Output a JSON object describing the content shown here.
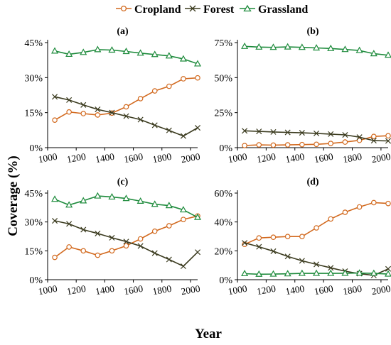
{
  "figure": {
    "ylabel": "Coverage (%)",
    "xlabel": "Year",
    "legend_position": "top-center"
  },
  "legend": [
    {
      "name": "Cropland",
      "color": "#D2691E",
      "marker": "circle"
    },
    {
      "name": "Forest",
      "color": "#3B3B1F",
      "marker": "x"
    },
    {
      "name": "Grassland",
      "color": "#1E8B3C",
      "marker": "triangle"
    }
  ],
  "chart_data": [
    {
      "type": "line",
      "title": "(a)",
      "xlabel": "",
      "ylabel": "",
      "xlim": [
        1000,
        2050
      ],
      "ylim": [
        0,
        45
      ],
      "xticks": [
        1000,
        1200,
        1400,
        1600,
        1800,
        2000
      ],
      "yticks": [
        0,
        15,
        30,
        45
      ],
      "ytick_labels": [
        "0%",
        "15%",
        "30%",
        "45%"
      ],
      "grid": false,
      "x": [
        1050,
        1150,
        1250,
        1350,
        1450,
        1550,
        1650,
        1750,
        1850,
        1950,
        2050
      ],
      "series": [
        {
          "name": "Cropland",
          "values": [
            11.8,
            15.3,
            14.6,
            14.0,
            14.8,
            17.5,
            21.0,
            24.3,
            26.3,
            29.5,
            29.9
          ]
        },
        {
          "name": "Forest",
          "values": [
            21.8,
            20.4,
            18.3,
            16.4,
            15.0,
            13.5,
            12.0,
            9.6,
            7.4,
            5.0,
            8.5
          ]
        },
        {
          "name": "Grassland",
          "values": [
            41.4,
            40.0,
            40.8,
            42.0,
            41.8,
            41.2,
            40.5,
            39.9,
            39.3,
            38.0,
            35.9
          ]
        }
      ]
    },
    {
      "type": "line",
      "title": "(b)",
      "xlabel": "",
      "ylabel": "",
      "xlim": [
        1000,
        2050
      ],
      "ylim": [
        0,
        75
      ],
      "xticks": [
        1000,
        1200,
        1400,
        1600,
        1800,
        2000
      ],
      "yticks": [
        0,
        25,
        50,
        75
      ],
      "ytick_labels": [
        "0%",
        "25%",
        "50%",
        "75%"
      ],
      "grid": false,
      "x": [
        1050,
        1150,
        1250,
        1350,
        1450,
        1550,
        1650,
        1750,
        1850,
        1950,
        2050
      ],
      "series": [
        {
          "name": "Cropland",
          "values": [
            1.5,
            2.0,
            1.8,
            2.0,
            2.2,
            2.4,
            3.0,
            4.0,
            5.2,
            8.0,
            8.5
          ]
        },
        {
          "name": "Forest",
          "values": [
            12.0,
            11.6,
            11.2,
            10.9,
            10.6,
            10.2,
            9.7,
            9.1,
            7.5,
            5.0,
            4.8
          ]
        },
        {
          "name": "Grassland",
          "values": [
            72.3,
            71.8,
            71.6,
            71.9,
            71.6,
            71.2,
            70.8,
            70.1,
            69.4,
            67.1,
            66.0
          ]
        }
      ]
    },
    {
      "type": "line",
      "title": "(c)",
      "xlabel": "",
      "ylabel": "",
      "xlim": [
        1000,
        2050
      ],
      "ylim": [
        0,
        45
      ],
      "xticks": [
        1000,
        1200,
        1400,
        1600,
        1800,
        2000
      ],
      "yticks": [
        0,
        15,
        30,
        45
      ],
      "ytick_labels": [
        "0%",
        "15%",
        "30%",
        "45%"
      ],
      "grid": false,
      "x": [
        1050,
        1150,
        1250,
        1350,
        1450,
        1550,
        1650,
        1750,
        1850,
        1950,
        2050
      ],
      "series": [
        {
          "name": "Cropland",
          "values": [
            11.6,
            17.0,
            15.0,
            12.7,
            15.0,
            17.6,
            21.2,
            25.2,
            28.0,
            31.3,
            33.1
          ]
        },
        {
          "name": "Forest",
          "values": [
            30.6,
            29.0,
            26.0,
            24.0,
            21.8,
            19.8,
            17.5,
            13.8,
            10.5,
            7.0,
            14.3
          ]
        },
        {
          "name": "Grassland",
          "values": [
            41.8,
            38.8,
            41.0,
            43.5,
            43.0,
            42.2,
            40.8,
            39.2,
            38.5,
            36.3,
            32.4
          ]
        }
      ]
    },
    {
      "type": "line",
      "title": "(d)",
      "xlabel": "",
      "ylabel": "",
      "xlim": [
        1000,
        2050
      ],
      "ylim": [
        0,
        60
      ],
      "xticks": [
        1000,
        1200,
        1400,
        1600,
        1800,
        2000
      ],
      "yticks": [
        0,
        20,
        40,
        60
      ],
      "ytick_labels": [
        "0%",
        "20%",
        "40%",
        "60%"
      ],
      "grid": false,
      "x": [
        1050,
        1150,
        1250,
        1350,
        1450,
        1550,
        1650,
        1750,
        1850,
        1950,
        2050
      ],
      "series": [
        {
          "name": "Cropland",
          "values": [
            24.5,
            28.9,
            29.4,
            29.9,
            29.9,
            35.9,
            42.1,
            46.7,
            50.4,
            53.4,
            52.8
          ]
        },
        {
          "name": "Forest",
          "values": [
            25.5,
            22.8,
            19.7,
            16.1,
            13.1,
            10.6,
            8.2,
            5.9,
            4.2,
            3.0,
            7.5
          ]
        },
        {
          "name": "Grassland",
          "values": [
            4.2,
            3.8,
            3.9,
            4.1,
            4.4,
            4.4,
            4.4,
            4.5,
            4.6,
            4.4,
            3.9
          ]
        }
      ]
    }
  ]
}
